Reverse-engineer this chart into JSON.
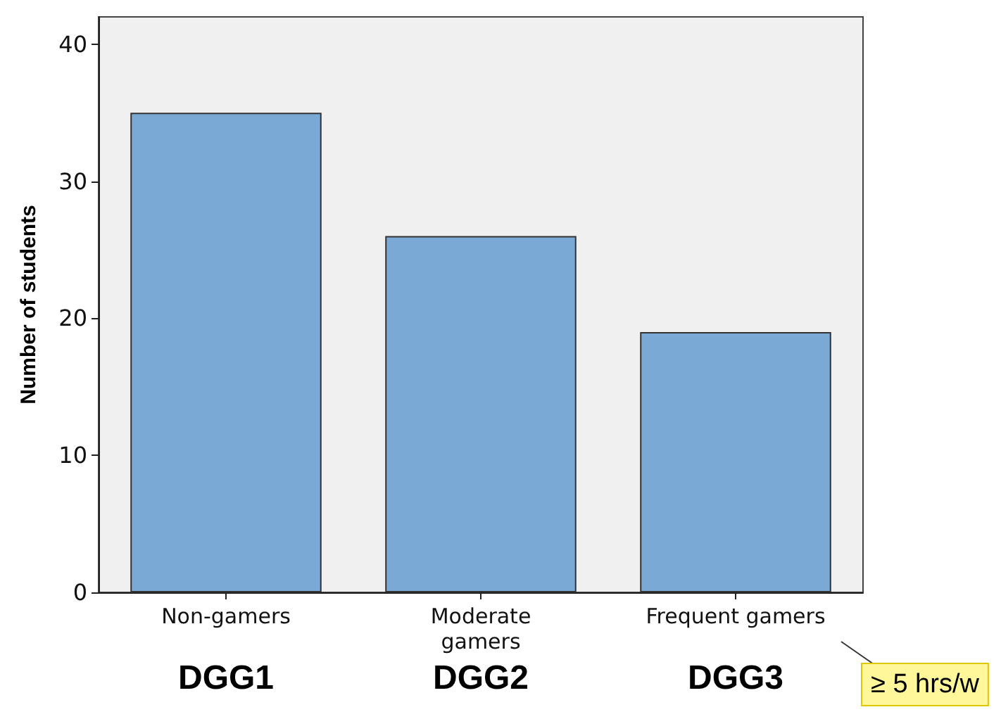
{
  "chart_data": {
    "type": "bar",
    "ylabel": "Number of students",
    "categories": [
      "Non-gamers",
      "Moderate\ngamers",
      "Frequent gamers"
    ],
    "values": [
      35,
      26,
      19
    ],
    "color": "#7ba9d6",
    "ylim": [
      0,
      42
    ],
    "yticks": [
      0,
      10,
      20,
      30,
      40
    ],
    "grid": false,
    "annotations": [
      "DGG1",
      "DGG2",
      "DGG3",
      "≥ 5 hrs/w"
    ]
  }
}
